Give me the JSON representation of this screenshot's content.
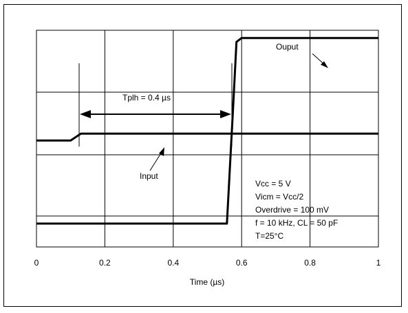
{
  "chart_data": {
    "type": "line",
    "xlabel": "Time (µs)",
    "xlim": [
      0,
      1
    ],
    "x_ticks": [
      "0",
      "0.2",
      "0.4",
      "0.6",
      "0.8",
      "1"
    ],
    "grid": true,
    "series": [
      {
        "name": "Ouput",
        "x": [
          0,
          0.557,
          0.575,
          0.585,
          0.6,
          1.0
        ],
        "y": [
          0.0,
          0.0,
          0.6,
          0.94,
          0.96,
          0.96
        ]
      },
      {
        "name": "Input",
        "x": [
          0,
          0.1,
          0.13,
          0.2,
          0.35,
          0.5,
          0.6,
          0.8,
          1.0
        ],
        "y": [
          0.43,
          0.43,
          0.465,
          0.465,
          0.465,
          0.465,
          0.465,
          0.465,
          0.465
        ]
      }
    ],
    "annotations": {
      "tplh": "Tplh = 0.4 µs",
      "output_label": "Ouput",
      "input_label": "Input",
      "conditions": [
        "Vcc = 5 V",
        "Vicm = Vcc/2",
        "Overdrive = 100 mV",
        "f = 10 kHz, CL = 50 pF",
        "T=25°C"
      ]
    }
  }
}
